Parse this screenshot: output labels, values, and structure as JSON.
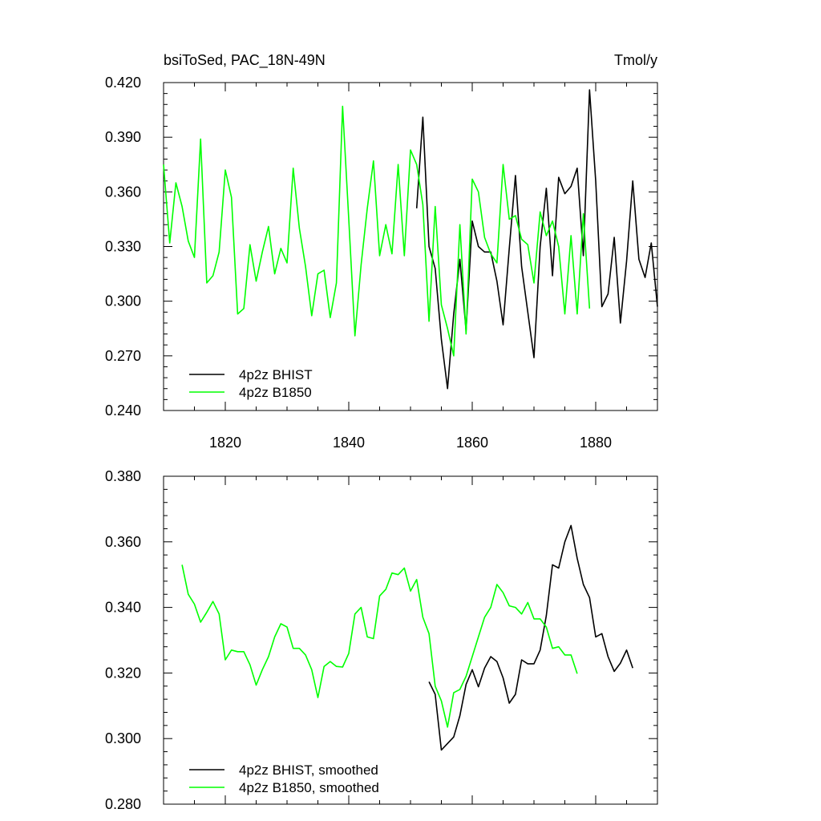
{
  "chart_data": [
    {
      "type": "line",
      "title": "bsiToSed, PAC_18N-49N",
      "units": "Tmol/y",
      "xlim": [
        1810,
        1890
      ],
      "ylim": [
        0.24,
        0.42
      ],
      "x_ticks": [
        1820,
        1840,
        1860,
        1880
      ],
      "y_ticks": [
        "0.240",
        "0.270",
        "0.300",
        "0.330",
        "0.360",
        "0.390",
        "0.420"
      ],
      "legend_position": "bottom-left",
      "series": [
        {
          "name": "4p2z BHIST",
          "color": "#000000",
          "x0": 1851,
          "values": [
            0.351,
            0.401,
            0.33,
            0.318,
            0.279,
            0.252,
            0.293,
            0.323,
            0.284,
            0.344,
            0.33,
            0.327,
            0.327,
            0.311,
            0.287,
            0.329,
            0.369,
            0.319,
            0.294,
            0.269,
            0.33,
            0.362,
            0.314,
            0.368,
            0.359,
            0.363,
            0.373,
            0.325,
            0.416,
            0.366,
            0.297,
            0.304,
            0.335,
            0.288,
            0.322,
            0.366,
            0.323,
            0.313,
            0.332,
            0.297
          ]
        },
        {
          "name": "4p2z B1850",
          "color": "#00ff00",
          "x0": 1810,
          "values": [
            0.375,
            0.332,
            0.365,
            0.352,
            0.333,
            0.324,
            0.389,
            0.31,
            0.314,
            0.327,
            0.372,
            0.357,
            0.293,
            0.296,
            0.331,
            0.311,
            0.327,
            0.341,
            0.315,
            0.329,
            0.321,
            0.373,
            0.34,
            0.319,
            0.292,
            0.315,
            0.317,
            0.291,
            0.31,
            0.407,
            0.345,
            0.281,
            0.32,
            0.351,
            0.377,
            0.325,
            0.342,
            0.326,
            0.375,
            0.325,
            0.383,
            0.375,
            0.353,
            0.289,
            0.352,
            0.298,
            0.285,
            0.27,
            0.342,
            0.282,
            0.367,
            0.36,
            0.335,
            0.326,
            0.321,
            0.375,
            0.345,
            0.347,
            0.334,
            0.331,
            0.31,
            0.349,
            0.336,
            0.344,
            0.33,
            0.293,
            0.336,
            0.293,
            0.348,
            0.296
          ]
        }
      ]
    },
    {
      "type": "line",
      "title": "",
      "xlim": [
        1810,
        1890
      ],
      "ylim": [
        0.28,
        0.38
      ],
      "x_ticks": [
        1820,
        1840,
        1860,
        1880
      ],
      "y_ticks": [
        "0.280",
        "0.300",
        "0.320",
        "0.340",
        "0.360",
        "0.380"
      ],
      "legend_position": "bottom-left",
      "series": [
        {
          "name": "4p2z BHIST, smoothed",
          "color": "#000000",
          "x0": 1853,
          "values": [
            0.3173,
            0.3135,
            0.2965,
            0.2985,
            0.3005,
            0.307,
            0.3165,
            0.321,
            0.3158,
            0.3215,
            0.325,
            0.3235,
            0.3185,
            0.3108,
            0.3135,
            0.324,
            0.3228,
            0.3228,
            0.327,
            0.3375,
            0.353,
            0.352,
            0.36,
            0.365,
            0.355,
            0.347,
            0.343,
            0.331,
            0.332,
            0.325,
            0.3205,
            0.323,
            0.327,
            0.3215
          ]
        },
        {
          "name": "4p2z B1850, smoothed",
          "color": "#00ff00",
          "x0": 1813,
          "values": [
            0.353,
            0.344,
            0.341,
            0.3355,
            0.3385,
            0.3418,
            0.338,
            0.324,
            0.327,
            0.3265,
            0.3265,
            0.3225,
            0.3163,
            0.321,
            0.325,
            0.331,
            0.335,
            0.334,
            0.3275,
            0.3275,
            0.3255,
            0.321,
            0.3125,
            0.322,
            0.3235,
            0.322,
            0.3218,
            0.326,
            0.338,
            0.34,
            0.331,
            0.3305,
            0.3435,
            0.3455,
            0.3505,
            0.35,
            0.352,
            0.345,
            0.3485,
            0.337,
            0.332,
            0.316,
            0.3115,
            0.3035,
            0.314,
            0.315,
            0.319,
            0.325,
            0.331,
            0.337,
            0.34,
            0.347,
            0.3445,
            0.3405,
            0.34,
            0.338,
            0.3415,
            0.3365,
            0.3365,
            0.334,
            0.3275,
            0.328,
            0.3255,
            0.3255,
            0.3198
          ]
        }
      ]
    }
  ]
}
